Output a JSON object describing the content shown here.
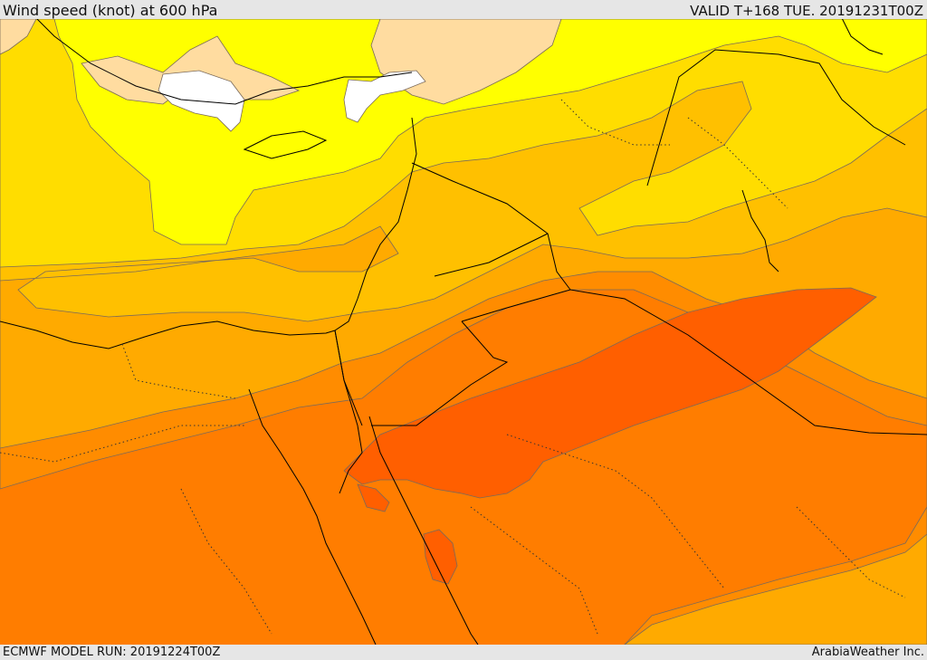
{
  "header": {
    "title": "Wind speed (knot) at 600 hPa",
    "valid": "VALID T+168 TUE. 20191231T00Z"
  },
  "footer": {
    "model_run": "ECMWF MODEL RUN: 20191224T00Z",
    "credit": "ArabiaWeather Inc."
  },
  "colors": {
    "calm": "#ffffff",
    "band_1": "#ffdca0",
    "band_2": "#ffff00",
    "band_3": "#ffdd00",
    "band_4": "#ffc000",
    "band_5": "#ffaa00",
    "band_6": "#ff8c00",
    "band_7": "#ff7700",
    "band_8": "#ff5f00",
    "contour": "#7a6a5a",
    "coast": "#000000"
  }
}
